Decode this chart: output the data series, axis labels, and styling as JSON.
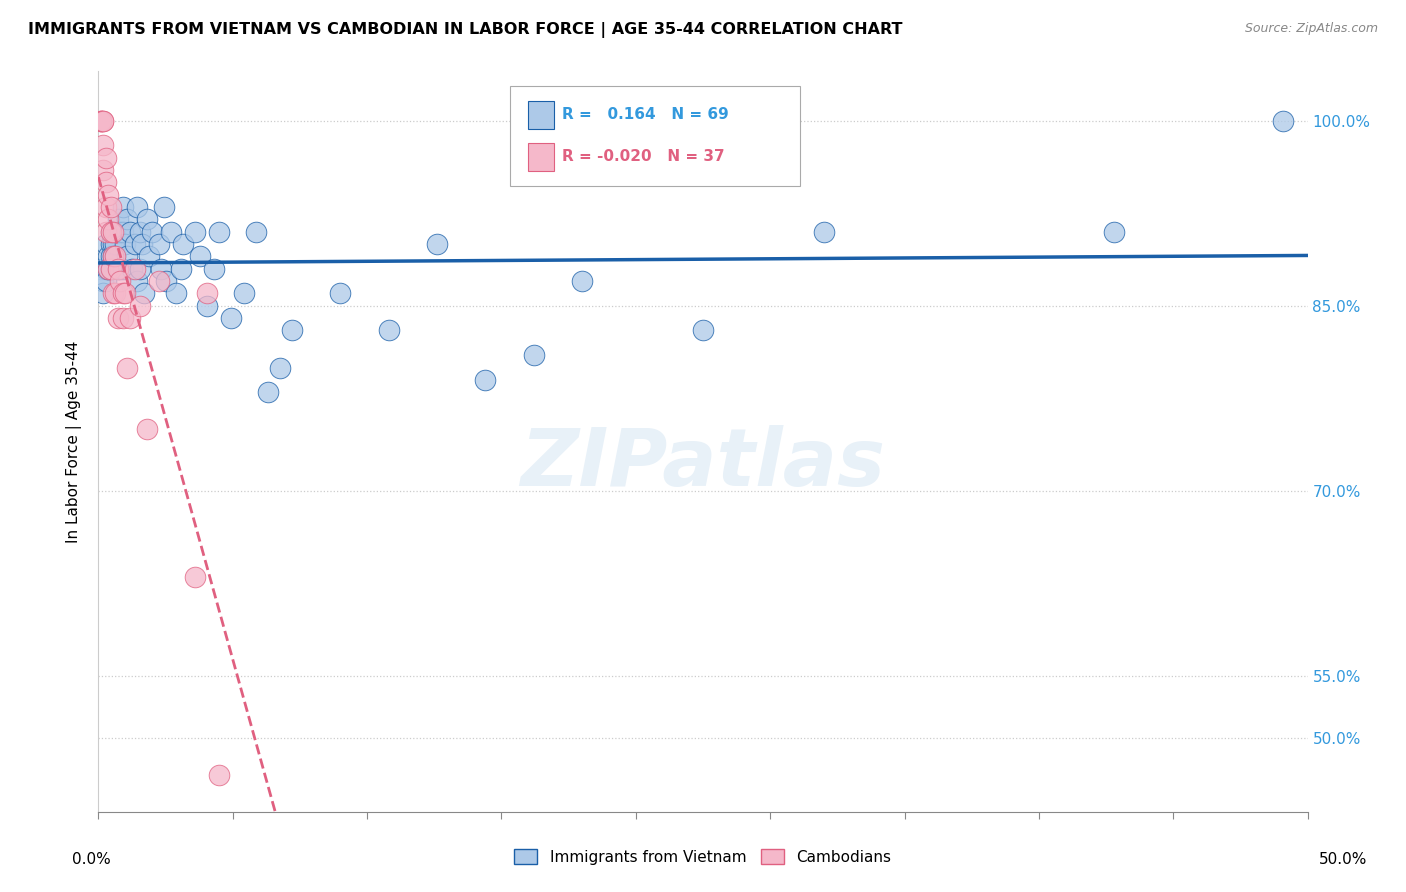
{
  "title": "IMMIGRANTS FROM VIETNAM VS CAMBODIAN IN LABOR FORCE | AGE 35-44 CORRELATION CHART",
  "source": "Source: ZipAtlas.com",
  "ylabel": "In Labor Force | Age 35-44",
  "y_ticks": [
    0.5,
    0.55,
    0.7,
    0.85,
    1.0
  ],
  "y_tick_labels": [
    "50.0%",
    "55.0%",
    "70.0%",
    "85.0%",
    "100.0%"
  ],
  "x_range": [
    0.0,
    0.5
  ],
  "y_range": [
    0.44,
    1.04
  ],
  "watermark": "ZIPatlas",
  "legend_vietnam": "Immigrants from Vietnam",
  "legend_cambodian": "Cambodians",
  "R_vietnam": 0.164,
  "N_vietnam": 69,
  "R_cambodian": -0.02,
  "N_cambodian": 37,
  "color_vietnam": "#adc9e8",
  "color_cambodian": "#f5b8ca",
  "trendline_vietnam_color": "#1a5fa8",
  "trendline_cambodian_color": "#e06080",
  "vietnam_x": [
    0.001,
    0.002,
    0.002,
    0.003,
    0.003,
    0.003,
    0.004,
    0.004,
    0.005,
    0.005,
    0.005,
    0.005,
    0.006,
    0.006,
    0.006,
    0.007,
    0.007,
    0.007,
    0.008,
    0.008,
    0.009,
    0.009,
    0.01,
    0.01,
    0.01,
    0.011,
    0.012,
    0.012,
    0.013,
    0.014,
    0.015,
    0.016,
    0.016,
    0.017,
    0.017,
    0.018,
    0.019,
    0.02,
    0.021,
    0.022,
    0.025,
    0.026,
    0.027,
    0.028,
    0.03,
    0.032,
    0.034,
    0.035,
    0.04,
    0.042,
    0.045,
    0.048,
    0.05,
    0.055,
    0.06,
    0.065,
    0.07,
    0.075,
    0.08,
    0.1,
    0.12,
    0.14,
    0.16,
    0.18,
    0.2,
    0.25,
    0.3,
    0.42,
    0.49
  ],
  "vietnam_y": [
    0.88,
    0.87,
    0.86,
    0.9,
    0.88,
    0.87,
    0.89,
    0.88,
    0.91,
    0.9,
    0.89,
    0.88,
    0.91,
    0.9,
    0.89,
    0.91,
    0.9,
    0.89,
    0.92,
    0.88,
    0.91,
    0.88,
    0.93,
    0.91,
    0.88,
    0.9,
    0.92,
    0.89,
    0.91,
    0.88,
    0.9,
    0.93,
    0.87,
    0.91,
    0.88,
    0.9,
    0.86,
    0.92,
    0.89,
    0.91,
    0.9,
    0.88,
    0.93,
    0.87,
    0.91,
    0.86,
    0.88,
    0.9,
    0.91,
    0.89,
    0.85,
    0.88,
    0.91,
    0.84,
    0.86,
    0.91,
    0.78,
    0.8,
    0.83,
    0.86,
    0.83,
    0.9,
    0.79,
    0.81,
    0.87,
    0.83,
    0.91,
    0.91,
    1.0
  ],
  "cambodian_x": [
    0.001,
    0.001,
    0.001,
    0.002,
    0.002,
    0.002,
    0.002,
    0.003,
    0.003,
    0.003,
    0.003,
    0.004,
    0.004,
    0.004,
    0.005,
    0.005,
    0.005,
    0.006,
    0.006,
    0.006,
    0.007,
    0.007,
    0.008,
    0.008,
    0.009,
    0.01,
    0.01,
    0.011,
    0.012,
    0.013,
    0.015,
    0.017,
    0.02,
    0.025,
    0.04,
    0.045,
    0.05
  ],
  "cambodian_y": [
    1.0,
    1.0,
    1.0,
    1.0,
    1.0,
    0.98,
    0.96,
    0.97,
    0.95,
    0.93,
    0.91,
    0.94,
    0.92,
    0.88,
    0.93,
    0.91,
    0.88,
    0.91,
    0.89,
    0.86,
    0.89,
    0.86,
    0.88,
    0.84,
    0.87,
    0.86,
    0.84,
    0.86,
    0.8,
    0.84,
    0.88,
    0.85,
    0.75,
    0.87,
    0.63,
    0.86,
    0.47
  ]
}
